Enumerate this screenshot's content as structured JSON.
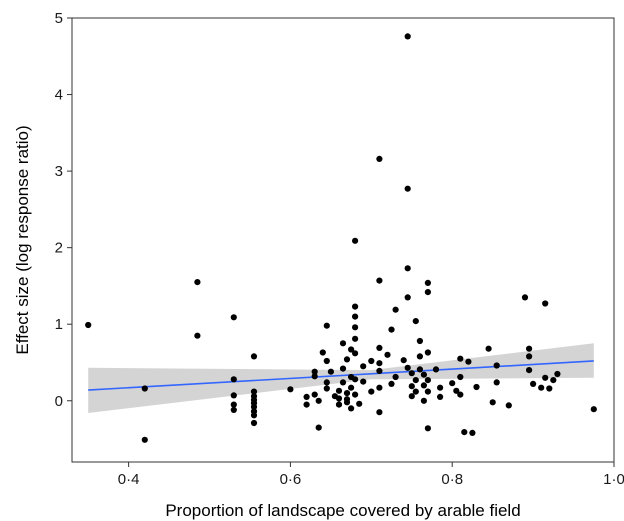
{
  "chart_data": {
    "type": "scatter",
    "title": "",
    "xlabel": "Proportion of landscape covered by arable field",
    "ylabel": "Effect size (log response ratio)",
    "xlim": [
      0.33,
      1.0
    ],
    "ylim": [
      -0.8,
      5.0
    ],
    "x_ticks": [
      0.4,
      0.6,
      0.8,
      1.0
    ],
    "x_tick_labels": [
      "0·4",
      "0·6",
      "0·8",
      "1·0"
    ],
    "y_ticks": [
      0,
      1,
      2,
      3,
      4,
      5
    ],
    "y_tick_labels": [
      "0",
      "1",
      "2",
      "3",
      "4",
      "5"
    ],
    "grid": false,
    "fit_line": {
      "x": [
        0.35,
        0.975
      ],
      "y": [
        0.14,
        0.52
      ],
      "ci_lower": [
        -0.16,
        0.3
      ],
      "ci_upper": [
        0.43,
        0.75
      ],
      "ci_mid_x": 0.7,
      "ci_mid_lower": 0.28,
      "ci_mid_upper": 0.4
    },
    "points": [
      [
        0.35,
        0.99
      ],
      [
        0.42,
        0.16
      ],
      [
        0.42,
        -0.51
      ],
      [
        0.485,
        1.55
      ],
      [
        0.485,
        0.85
      ],
      [
        0.53,
        1.09
      ],
      [
        0.53,
        0.28
      ],
      [
        0.53,
        0.07
      ],
      [
        0.53,
        -0.05
      ],
      [
        0.53,
        -0.12
      ],
      [
        0.555,
        0.58
      ],
      [
        0.555,
        0.12
      ],
      [
        0.555,
        0.06
      ],
      [
        0.555,
        0.01
      ],
      [
        0.555,
        -0.03
      ],
      [
        0.555,
        -0.08
      ],
      [
        0.555,
        -0.14
      ],
      [
        0.555,
        -0.19
      ],
      [
        0.555,
        -0.29
      ],
      [
        0.6,
        0.15
      ],
      [
        0.62,
        0.05
      ],
      [
        0.62,
        -0.05
      ],
      [
        0.63,
        0.38
      ],
      [
        0.63,
        0.32
      ],
      [
        0.63,
        0.08
      ],
      [
        0.635,
        -0.35
      ],
      [
        0.635,
        0.0
      ],
      [
        0.64,
        0.63
      ],
      [
        0.645,
        0.98
      ],
      [
        0.645,
        0.24
      ],
      [
        0.645,
        0.16
      ],
      [
        0.645,
        0.52
      ],
      [
        0.65,
        0.38
      ],
      [
        0.655,
        0.06
      ],
      [
        0.66,
        0.13
      ],
      [
        0.66,
        0.03
      ],
      [
        0.66,
        -0.05
      ],
      [
        0.665,
        0.24
      ],
      [
        0.665,
        0.75
      ],
      [
        0.665,
        0.42
      ],
      [
        0.67,
        0.54
      ],
      [
        0.67,
        0.1
      ],
      [
        0.67,
        0.02
      ],
      [
        0.67,
        -0.02
      ],
      [
        0.675,
        0.31
      ],
      [
        0.675,
        0.17
      ],
      [
        0.675,
        0.67
      ],
      [
        0.675,
        -0.1
      ],
      [
        0.68,
        2.09
      ],
      [
        0.68,
        1.23
      ],
      [
        0.68,
        1.1
      ],
      [
        0.68,
        0.96
      ],
      [
        0.68,
        0.81
      ],
      [
        0.68,
        0.62
      ],
      [
        0.68,
        0.28
      ],
      [
        0.68,
        0.08
      ],
      [
        0.685,
        -0.04
      ],
      [
        0.69,
        0.25
      ],
      [
        0.69,
        0.45
      ],
      [
        0.7,
        0.12
      ],
      [
        0.7,
        0.52
      ],
      [
        0.71,
        3.16
      ],
      [
        0.71,
        1.57
      ],
      [
        0.71,
        0.69
      ],
      [
        0.71,
        0.49
      ],
      [
        0.71,
        0.39
      ],
      [
        0.71,
        0.17
      ],
      [
        0.71,
        -0.15
      ],
      [
        0.72,
        0.6
      ],
      [
        0.725,
        0.22
      ],
      [
        0.725,
        0.93
      ],
      [
        0.73,
        1.19
      ],
      [
        0.73,
        0.31
      ],
      [
        0.74,
        0.53
      ],
      [
        0.745,
        4.76
      ],
      [
        0.745,
        2.77
      ],
      [
        0.745,
        1.73
      ],
      [
        0.745,
        1.35
      ],
      [
        0.745,
        0.43
      ],
      [
        0.75,
        0.36
      ],
      [
        0.75,
        0.19
      ],
      [
        0.75,
        0.06
      ],
      [
        0.755,
        1.04
      ],
      [
        0.755,
        0.27
      ],
      [
        0.755,
        0.12
      ],
      [
        0.76,
        0.78
      ],
      [
        0.76,
        0.58
      ],
      [
        0.76,
        0.41
      ],
      [
        0.765,
        0.34
      ],
      [
        0.765,
        0.2
      ],
      [
        0.765,
        0.0
      ],
      [
        0.77,
        1.54
      ],
      [
        0.77,
        1.42
      ],
      [
        0.77,
        0.63
      ],
      [
        0.77,
        0.27
      ],
      [
        0.77,
        0.12
      ],
      [
        0.77,
        -0.36
      ],
      [
        0.78,
        0.41
      ],
      [
        0.785,
        0.17
      ],
      [
        0.785,
        0.05
      ],
      [
        0.8,
        0.23
      ],
      [
        0.805,
        0.13
      ],
      [
        0.81,
        0.55
      ],
      [
        0.81,
        0.31
      ],
      [
        0.81,
        0.08
      ],
      [
        0.815,
        -0.41
      ],
      [
        0.82,
        0.51
      ],
      [
        0.825,
        -0.42
      ],
      [
        0.83,
        0.18
      ],
      [
        0.845,
        0.68
      ],
      [
        0.85,
        -0.02
      ],
      [
        0.855,
        0.46
      ],
      [
        0.855,
        0.24
      ],
      [
        0.87,
        -0.06
      ],
      [
        0.89,
        1.35
      ],
      [
        0.895,
        0.68
      ],
      [
        0.895,
        0.58
      ],
      [
        0.895,
        0.4
      ],
      [
        0.9,
        0.22
      ],
      [
        0.91,
        0.17
      ],
      [
        0.915,
        1.27
      ],
      [
        0.915,
        0.3
      ],
      [
        0.92,
        0.16
      ],
      [
        0.925,
        0.27
      ],
      [
        0.93,
        0.35
      ],
      [
        0.975,
        -0.11
      ]
    ]
  },
  "colors": {
    "points": "#000000",
    "fit_line": "#3366ff",
    "ci_band": "#cccccc",
    "axis": "#333333"
  }
}
